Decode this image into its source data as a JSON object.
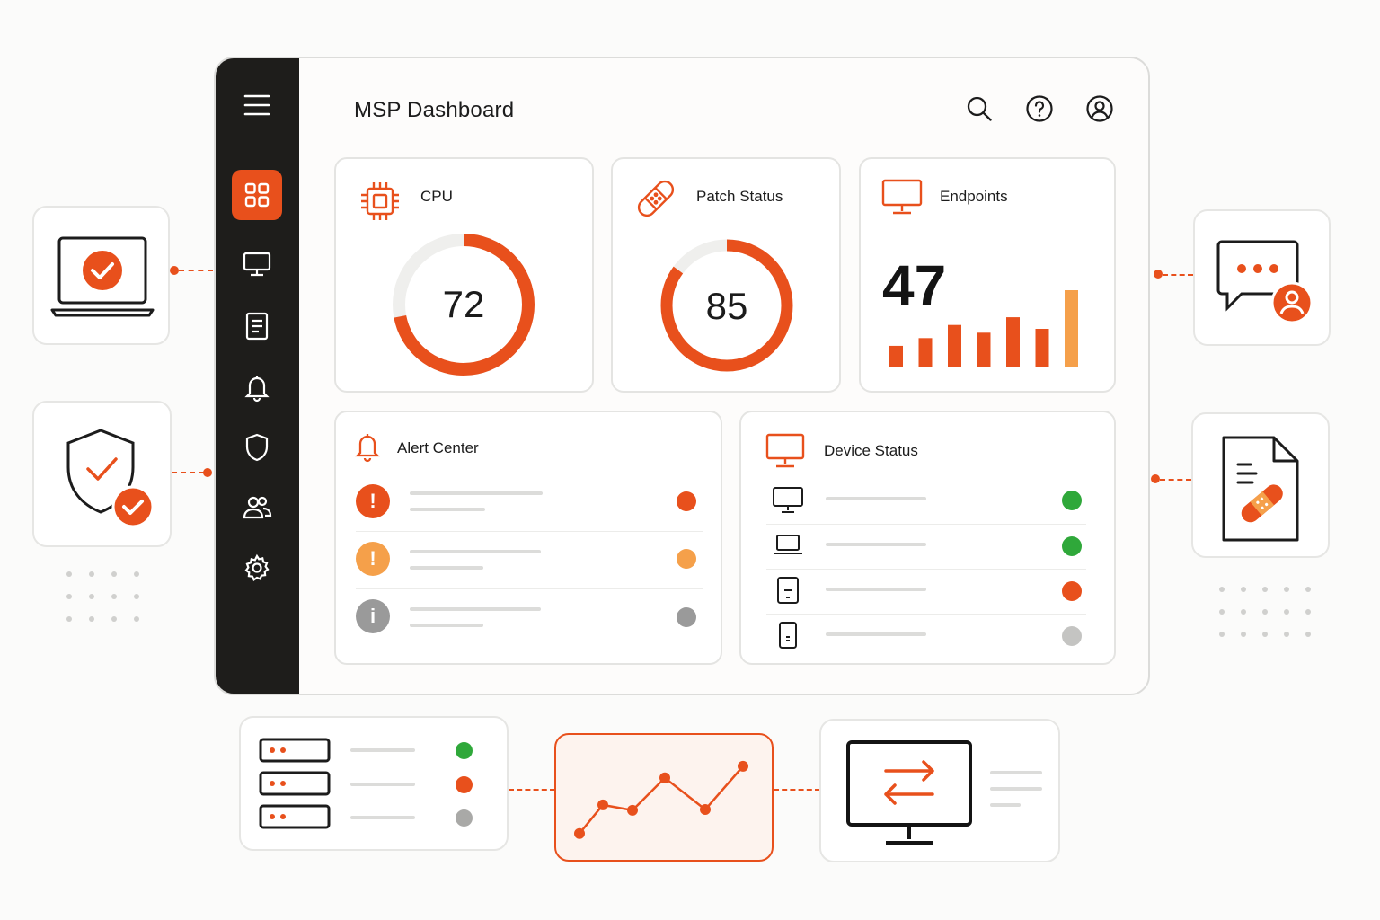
{
  "header": {
    "title": "MSP Dashboard",
    "icons": [
      "search-icon",
      "help-icon",
      "user-account-icon"
    ]
  },
  "sidebar": {
    "items": [
      {
        "icon": "menu-icon",
        "active": false
      },
      {
        "icon": "dashboard-grid-icon",
        "active": true
      },
      {
        "icon": "monitor-icon",
        "active": false
      },
      {
        "icon": "document-icon",
        "active": false
      },
      {
        "icon": "bell-icon",
        "active": false
      },
      {
        "icon": "shield-icon",
        "active": false
      },
      {
        "icon": "users-icon",
        "active": false
      },
      {
        "icon": "settings-gear-icon",
        "active": false
      }
    ]
  },
  "cpu": {
    "title": "CPU",
    "value": "72",
    "percent": 72
  },
  "patch": {
    "title": "Patch Status",
    "value": "85",
    "percent": 85
  },
  "endpoints": {
    "title": "Endpoints",
    "value": "47",
    "bars": [
      0.28,
      0.38,
      0.55,
      0.45,
      0.65,
      0.5,
      1.0
    ]
  },
  "alerts": {
    "title": "Alert Center",
    "items": [
      {
        "severity": "critical",
        "color": "#e8501c"
      },
      {
        "severity": "warning",
        "color": "#f5a04a"
      },
      {
        "severity": "info",
        "color": "#9a9a9a"
      }
    ]
  },
  "devices": {
    "title": "Device Status",
    "items": [
      {
        "icon": "desktop-icon",
        "status_color": "#2fa83a"
      },
      {
        "icon": "laptop-icon",
        "status_color": "#2fa83a"
      },
      {
        "icon": "tablet-icon",
        "status_color": "#e8501c"
      },
      {
        "icon": "phone-icon",
        "status_color": "#c4c4c2"
      }
    ]
  },
  "servers": {
    "status_colors": [
      "#2fa83a",
      "#e8501c",
      "#a9a9a7"
    ]
  },
  "trend": {
    "points": [
      0.05,
      0.42,
      0.35,
      0.77,
      0.36,
      0.92
    ]
  },
  "colors": {
    "accent": "#e8501c",
    "accent_light": "#f5a04a",
    "sidebar_bg": "#1e1d1b",
    "ok": "#2fa83a"
  }
}
